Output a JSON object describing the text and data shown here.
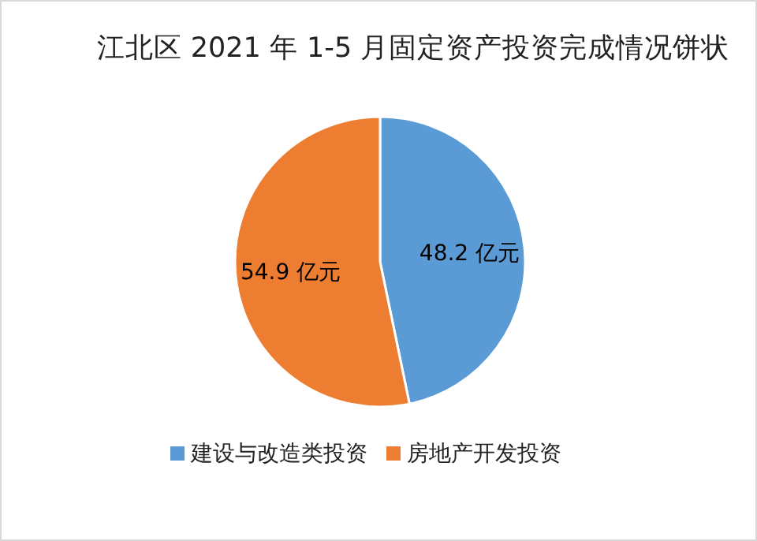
{
  "chart_data": {
    "type": "pie",
    "title": "江北区 2021 年 1-5 月固定资产投资完成情况饼状",
    "categories": [
      "建设与改造类投资",
      "房地产开发投资"
    ],
    "values": [
      48.2,
      54.9
    ],
    "colors": [
      "#5b9bd5",
      "#ed7d31"
    ],
    "value_labels": [
      "48.2 亿元",
      "54.9 亿元"
    ],
    "legend": "bottom"
  }
}
